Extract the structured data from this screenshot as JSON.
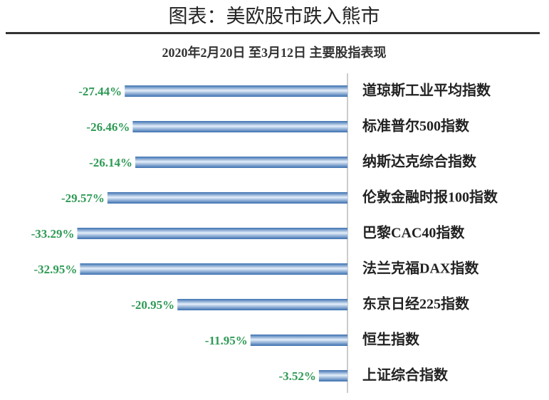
{
  "chart_data": {
    "type": "bar",
    "orientation": "horizontal",
    "title": "图表：美欧股市跌入熊市",
    "subtitle": "2020年2月20日 至3月12日 主要股指表现",
    "categories": [
      "道琼斯工业平均指数",
      "标准普尔500指数",
      "纳斯达克综合指数",
      "伦敦金融时报100指数",
      "巴黎CAC40指数",
      "法兰克福DAX指数",
      "东京日经225指数",
      "恒生指数",
      "上证综合指数"
    ],
    "values": [
      -27.44,
      -26.46,
      -26.14,
      -29.57,
      -33.29,
      -32.95,
      -20.95,
      -11.95,
      -3.52
    ],
    "value_labels": [
      "-27.44%",
      "-26.46%",
      "-26.14%",
      "-29.57%",
      "-33.29%",
      "-32.95%",
      "-20.95%",
      "-11.95%",
      "-3.52%"
    ],
    "color": "#3a6fb0",
    "value_label_color": "#2e9a55",
    "xlim": [
      -35,
      0
    ]
  }
}
